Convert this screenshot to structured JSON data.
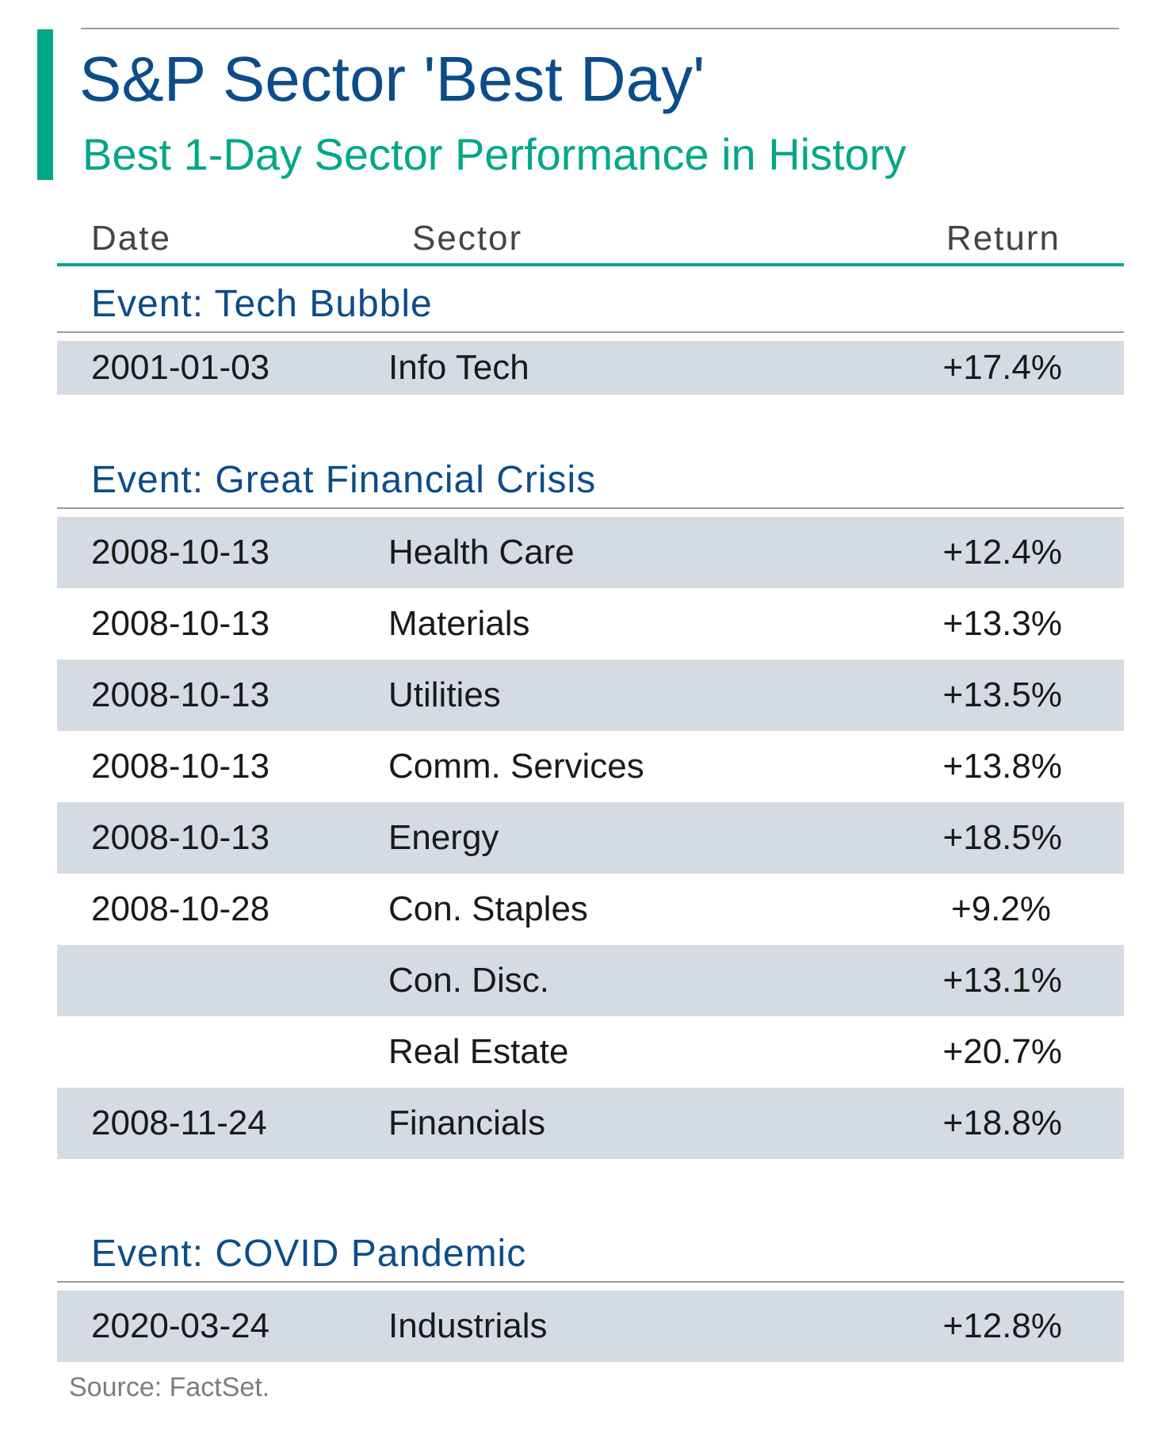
{
  "title": "S&P Sector 'Best Day'",
  "subtitle": "Best 1-Day Sector Performance in History",
  "source": "Source: FactSet.",
  "colors": {
    "accent": "#00a887",
    "title": "#0d4c8a",
    "row_shade": "#d5dbe3"
  },
  "chart_data": {
    "type": "table",
    "title": "S&P Sector 'Best Day'",
    "subtitle": "Best 1-Day Sector Performance in History",
    "columns": [
      "Date",
      "Sector",
      "Return"
    ],
    "groups": [
      {
        "label": "Event: Tech Bubble",
        "rows": [
          {
            "date": "2001-01-03",
            "sector": "Info Tech",
            "return": "+17.4%"
          }
        ]
      },
      {
        "label": "Event: Great Financial Crisis",
        "rows": [
          {
            "date": "2008-10-13",
            "sector": "Health Care",
            "return": "+12.4%"
          },
          {
            "date": "2008-10-13",
            "sector": "Materials",
            "return": "+13.3%"
          },
          {
            "date": "2008-10-13",
            "sector": "Utilities",
            "return": "+13.5%"
          },
          {
            "date": "2008-10-13",
            "sector": "Comm. Services",
            "return": "+13.8%"
          },
          {
            "date": "2008-10-13",
            "sector": "Energy",
            "return": "+18.5%"
          },
          {
            "date": "2008-10-28",
            "sector": "Con. Staples",
            "return": "+9.2%"
          },
          {
            "date": "",
            "sector": "Con. Disc.",
            "return": "+13.1%"
          },
          {
            "date": "",
            "sector": "Real Estate",
            "return": "+20.7%"
          },
          {
            "date": "2008-11-24",
            "sector": "Financials",
            "return": "+18.8%"
          }
        ]
      },
      {
        "label": "Event: COVID Pandemic",
        "rows": [
          {
            "date": "2020-03-24",
            "sector": "Industrials",
            "return": "+12.8%"
          }
        ]
      }
    ]
  }
}
